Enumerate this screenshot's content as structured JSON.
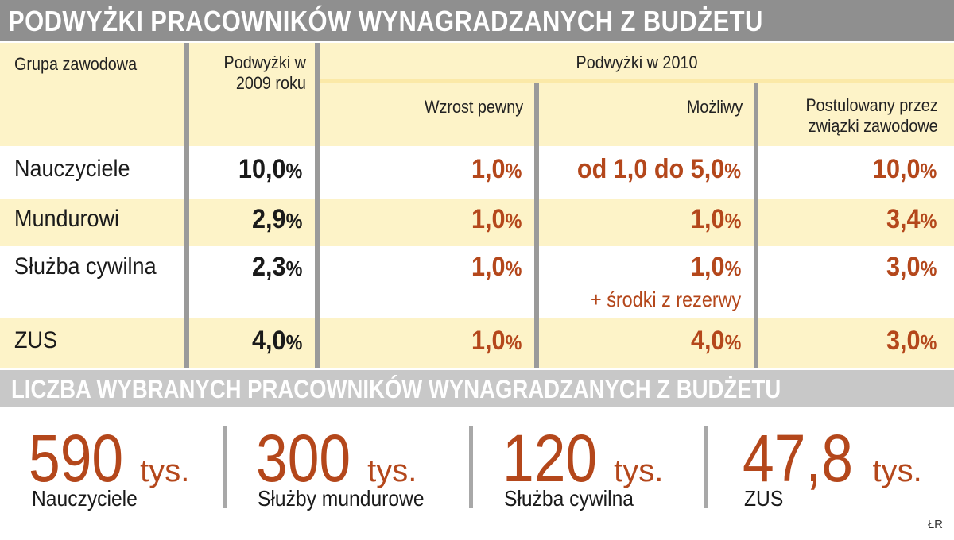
{
  "title": "PODWYŻKI PRACOWNIKÓW WYNAGRADZANYCH Z BUDŻETU",
  "subtitle": "LICZBA WYBRANYCH PRACOWNIKÓW WYNAGRADZANYCH Z BUDŻETU",
  "colors": {
    "header_bar": "#8f8f8f",
    "sub_bar": "#c8c8c8",
    "cream": "#fdf3c8",
    "accent": "#b4471b",
    "separator": "#9a9a9a"
  },
  "chart_data": [
    {
      "type": "table",
      "headers": {
        "group": "Grupa zawodowa",
        "y2009_line1": "Podwyżki w",
        "y2009_line2": "2009 roku",
        "y2010": "Podwyżki w 2010",
        "certain": "Wzrost pewny",
        "possible": "Możliwy",
        "union_line1": "Postulowany przez",
        "union_line2": "związki zawodowe"
      },
      "rows": [
        {
          "group": "Nauczyciele",
          "y2009": "10,0",
          "certain": "1,0",
          "possible": "od 1,0 do 5,0",
          "possible_note": "",
          "union": "10,0"
        },
        {
          "group": "Mundurowi",
          "y2009": "2,9",
          "certain": "1,0",
          "possible": "1,0",
          "possible_note": "",
          "union": "3,4"
        },
        {
          "group": "Służba cywilna",
          "y2009": "2,3",
          "certain": "1,0",
          "possible": "1,0",
          "possible_note": "+ środki z rezerwy",
          "union": "3,0"
        },
        {
          "group": "ZUS",
          "y2009": "4,0",
          "certain": "1,0",
          "possible": "4,0",
          "possible_note": "",
          "union": "3,0"
        }
      ],
      "percent_sign": "%"
    },
    {
      "type": "table",
      "unit": "tys.",
      "items": [
        {
          "value": "590",
          "label": "Nauczyciele"
        },
        {
          "value": "300",
          "label": "Służby mundurowe"
        },
        {
          "value": "120",
          "label": "Służba cywilna"
        },
        {
          "value": "47,8",
          "label": "ZUS"
        }
      ]
    }
  ],
  "credit": "ŁR"
}
